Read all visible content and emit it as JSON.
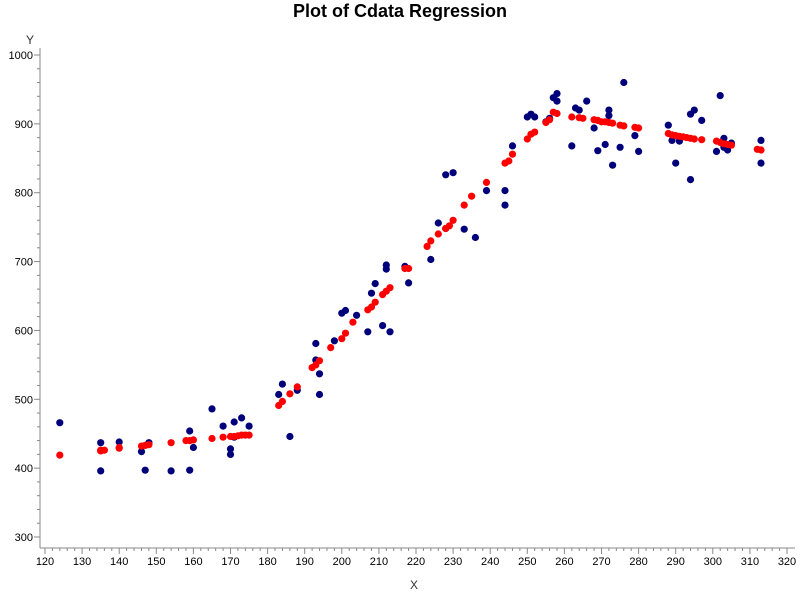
{
  "chart_data": {
    "type": "scatter",
    "title": "Plot of Cdata Regression",
    "xlabel": "X",
    "ylabel": "Y",
    "xlim": [
      120,
      320
    ],
    "ylim": [
      300,
      1000
    ],
    "xticks": [
      120,
      130,
      140,
      150,
      160,
      170,
      180,
      190,
      200,
      210,
      220,
      230,
      240,
      250,
      260,
      270,
      280,
      290,
      300,
      310,
      320
    ],
    "yticks": [
      300,
      400,
      500,
      600,
      700,
      800,
      900,
      1000
    ],
    "xminor_step": 2,
    "yminor_step": 20,
    "grid": false,
    "legend": "none",
    "series": [
      {
        "color": "#00007a",
        "marker": "circle",
        "points": [
          [
            124,
            466
          ],
          [
            135,
            437
          ],
          [
            135,
            396
          ],
          [
            140,
            438
          ],
          [
            146,
            424
          ],
          [
            147,
            397
          ],
          [
            148,
            437
          ],
          [
            154,
            396
          ],
          [
            159,
            397
          ],
          [
            159,
            454
          ],
          [
            160,
            430
          ],
          [
            165,
            486
          ],
          [
            168,
            461
          ],
          [
            170,
            420
          ],
          [
            170,
            428
          ],
          [
            171,
            467
          ],
          [
            171,
            445
          ],
          [
            173,
            473
          ],
          [
            175,
            461
          ],
          [
            183,
            507
          ],
          [
            184,
            522
          ],
          [
            186,
            446
          ],
          [
            188,
            513
          ],
          [
            193,
            557
          ],
          [
            193,
            581
          ],
          [
            194,
            507
          ],
          [
            194,
            537
          ],
          [
            198,
            585
          ],
          [
            200,
            625
          ],
          [
            201,
            629
          ],
          [
            204,
            622
          ],
          [
            207,
            598
          ],
          [
            208,
            654
          ],
          [
            209,
            668
          ],
          [
            211,
            607
          ],
          [
            212,
            689
          ],
          [
            212,
            695
          ],
          [
            213,
            598
          ],
          [
            217,
            693
          ],
          [
            218,
            669
          ],
          [
            224,
            703
          ],
          [
            226,
            756
          ],
          [
            228,
            748
          ],
          [
            228,
            826
          ],
          [
            230,
            829
          ],
          [
            233,
            747
          ],
          [
            236,
            735
          ],
          [
            239,
            803
          ],
          [
            244,
            782
          ],
          [
            244,
            803
          ],
          [
            246,
            868
          ],
          [
            250,
            910
          ],
          [
            251,
            914
          ],
          [
            252,
            910
          ],
          [
            255,
            903
          ],
          [
            256,
            908
          ],
          [
            257,
            938
          ],
          [
            258,
            944
          ],
          [
            258,
            933
          ],
          [
            262,
            868
          ],
          [
            263,
            923
          ],
          [
            264,
            920
          ],
          [
            266,
            933
          ],
          [
            268,
            894
          ],
          [
            269,
            861
          ],
          [
            271,
            870
          ],
          [
            272,
            920
          ],
          [
            272,
            912
          ],
          [
            273,
            840
          ],
          [
            275,
            866
          ],
          [
            276,
            960
          ],
          [
            279,
            883
          ],
          [
            280,
            860
          ],
          [
            288,
            898
          ],
          [
            289,
            876
          ],
          [
            290,
            843
          ],
          [
            291,
            875
          ],
          [
            294,
            914
          ],
          [
            294,
            819
          ],
          [
            295,
            920
          ],
          [
            297,
            905
          ],
          [
            301,
            860
          ],
          [
            302,
            941
          ],
          [
            303,
            866
          ],
          [
            303,
            879
          ],
          [
            304,
            862
          ],
          [
            305,
            872
          ],
          [
            313,
            876
          ],
          [
            313,
            843
          ]
        ]
      },
      {
        "color": "#ff0000",
        "marker": "circle",
        "points": [
          [
            124,
            419
          ],
          [
            135,
            425
          ],
          [
            135,
            426
          ],
          [
            136,
            426
          ],
          [
            140,
            429
          ],
          [
            140,
            430
          ],
          [
            146,
            432
          ],
          [
            147,
            433
          ],
          [
            148,
            434
          ],
          [
            154,
            437
          ],
          [
            158,
            440
          ],
          [
            159,
            440
          ],
          [
            160,
            441
          ],
          [
            165,
            443
          ],
          [
            168,
            445
          ],
          [
            170,
            446
          ],
          [
            171,
            446
          ],
          [
            172,
            447
          ],
          [
            173,
            448
          ],
          [
            174,
            448
          ],
          [
            175,
            448
          ],
          [
            183,
            491
          ],
          [
            184,
            497
          ],
          [
            186,
            508
          ],
          [
            188,
            518
          ],
          [
            192,
            546
          ],
          [
            193,
            550
          ],
          [
            194,
            556
          ],
          [
            197,
            575
          ],
          [
            200,
            588
          ],
          [
            201,
            596
          ],
          [
            203,
            612
          ],
          [
            207,
            630
          ],
          [
            208,
            634
          ],
          [
            209,
            641
          ],
          [
            211,
            652
          ],
          [
            212,
            657
          ],
          [
            213,
            662
          ],
          [
            217,
            690
          ],
          [
            218,
            690
          ],
          [
            223,
            722
          ],
          [
            224,
            730
          ],
          [
            226,
            740
          ],
          [
            228,
            748
          ],
          [
            229,
            752
          ],
          [
            230,
            760
          ],
          [
            233,
            782
          ],
          [
            235,
            795
          ],
          [
            239,
            815
          ],
          [
            244,
            843
          ],
          [
            245,
            846
          ],
          [
            246,
            856
          ],
          [
            250,
            878
          ],
          [
            251,
            885
          ],
          [
            252,
            888
          ],
          [
            255,
            902
          ],
          [
            256,
            906
          ],
          [
            257,
            917
          ],
          [
            258,
            915
          ],
          [
            262,
            910
          ],
          [
            264,
            909
          ],
          [
            265,
            908
          ],
          [
            268,
            906
          ],
          [
            269,
            905
          ],
          [
            270,
            903
          ],
          [
            271,
            903
          ],
          [
            272,
            902
          ],
          [
            273,
            901
          ],
          [
            275,
            898
          ],
          [
            276,
            897
          ],
          [
            279,
            895
          ],
          [
            280,
            894
          ],
          [
            288,
            886
          ],
          [
            289,
            884
          ],
          [
            290,
            883
          ],
          [
            291,
            882
          ],
          [
            292,
            881
          ],
          [
            293,
            880
          ],
          [
            294,
            879
          ],
          [
            295,
            878
          ],
          [
            297,
            877
          ],
          [
            301,
            875
          ],
          [
            302,
            873
          ],
          [
            303,
            871
          ],
          [
            304,
            870
          ],
          [
            305,
            869
          ],
          [
            312,
            863
          ],
          [
            313,
            862
          ]
        ]
      }
    ]
  }
}
